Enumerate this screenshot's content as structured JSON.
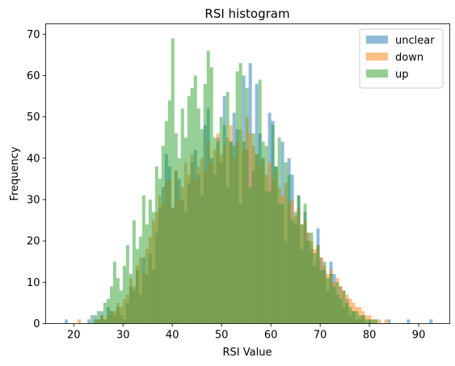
{
  "chart_data": {
    "type": "bar",
    "title": "RSI histogram",
    "xlabel": "RSI Value",
    "ylabel": "Frequency",
    "xlim": [
      14.3,
      96.3
    ],
    "ylim": [
      0,
      72.5
    ],
    "xticks": [
      20,
      30,
      40,
      50,
      60,
      70,
      80,
      90
    ],
    "yticks": [
      0,
      10,
      20,
      30,
      40,
      50,
      60,
      70
    ],
    "legend_position": "top-right",
    "bins": {
      "start": 17.5,
      "width": 0.655
    },
    "series": [
      {
        "name": "unclear",
        "color": "#1f77b4",
        "opacity": 0.5,
        "values": [
          0,
          1,
          0,
          0,
          0,
          0,
          0,
          0,
          1,
          0,
          2,
          1,
          3,
          1,
          4,
          3,
          2,
          4,
          2,
          1,
          5,
          9,
          8,
          13,
          7,
          16,
          12,
          17,
          13,
          22,
          28,
          33,
          41,
          38,
          28,
          37,
          35,
          30,
          27,
          34,
          39,
          42,
          36,
          31,
          48,
          52,
          40,
          36,
          45,
          39,
          55,
          33,
          44,
          51,
          47,
          29,
          60,
          42,
          63,
          37,
          58,
          46,
          40,
          32,
          51,
          49,
          38,
          29,
          44,
          20,
          40,
          36,
          24,
          31,
          18,
          27,
          22,
          18,
          14,
          23,
          16,
          13,
          8,
          15,
          12,
          7,
          9,
          4,
          6,
          2,
          3,
          1,
          1,
          2,
          0,
          1,
          0,
          0,
          0,
          0,
          0,
          1,
          0,
          0,
          0,
          0,
          0,
          1,
          0,
          0,
          0,
          0,
          0,
          0,
          1
        ]
      },
      {
        "name": "down",
        "color": "#ff7f0e",
        "opacity": 0.5,
        "values": [
          0,
          0,
          0,
          0,
          0,
          1,
          0,
          0,
          0,
          0,
          0,
          1,
          2,
          1,
          2,
          3,
          3,
          5,
          4,
          6,
          7,
          11,
          9,
          14,
          16,
          12,
          18,
          21,
          25,
          27,
          31,
          29,
          34,
          35,
          28,
          37,
          30,
          33,
          39,
          36,
          41,
          35,
          38,
          40,
          37,
          44,
          39,
          42,
          46,
          41,
          43,
          45,
          48,
          40,
          44,
          47,
          42,
          50,
          46,
          43,
          41,
          38,
          40,
          36,
          39,
          35,
          37,
          33,
          31,
          34,
          29,
          30,
          26,
          28,
          24,
          25,
          22,
          20,
          18,
          19,
          16,
          14,
          12,
          13,
          10,
          11,
          9,
          8,
          7,
          6,
          5,
          4,
          4,
          3,
          2,
          2,
          1,
          1,
          1,
          0,
          1,
          0,
          0,
          0,
          0,
          0,
          0,
          0,
          0,
          0,
          0,
          0,
          0,
          0,
          0
        ]
      },
      {
        "name": "up",
        "color": "#2ca02c",
        "opacity": 0.5,
        "values": [
          0,
          0,
          0,
          0,
          0,
          0,
          0,
          0,
          0,
          2,
          1,
          3,
          2,
          5,
          6,
          9,
          15,
          11,
          8,
          14,
          19,
          12,
          25,
          18,
          21,
          31,
          24,
          30,
          27,
          38,
          35,
          43,
          49,
          54,
          69,
          46,
          40,
          52,
          45,
          55,
          57,
          60,
          52,
          47,
          58,
          66,
          62,
          45,
          44,
          50,
          48,
          56,
          44,
          43,
          61,
          63,
          44,
          57,
          33,
          46,
          41,
          59,
          44,
          43,
          32,
          48,
          38,
          45,
          29,
          39,
          36,
          25,
          27,
          31,
          24,
          29,
          20,
          22,
          17,
          19,
          13,
          15,
          11,
          12,
          9,
          10,
          6,
          8,
          5,
          4,
          3,
          3,
          2,
          2,
          1,
          1,
          1,
          1,
          0,
          0,
          0,
          0,
          0,
          0,
          0,
          0,
          0,
          0,
          0,
          0,
          0,
          0,
          0,
          0,
          0
        ]
      }
    ]
  }
}
